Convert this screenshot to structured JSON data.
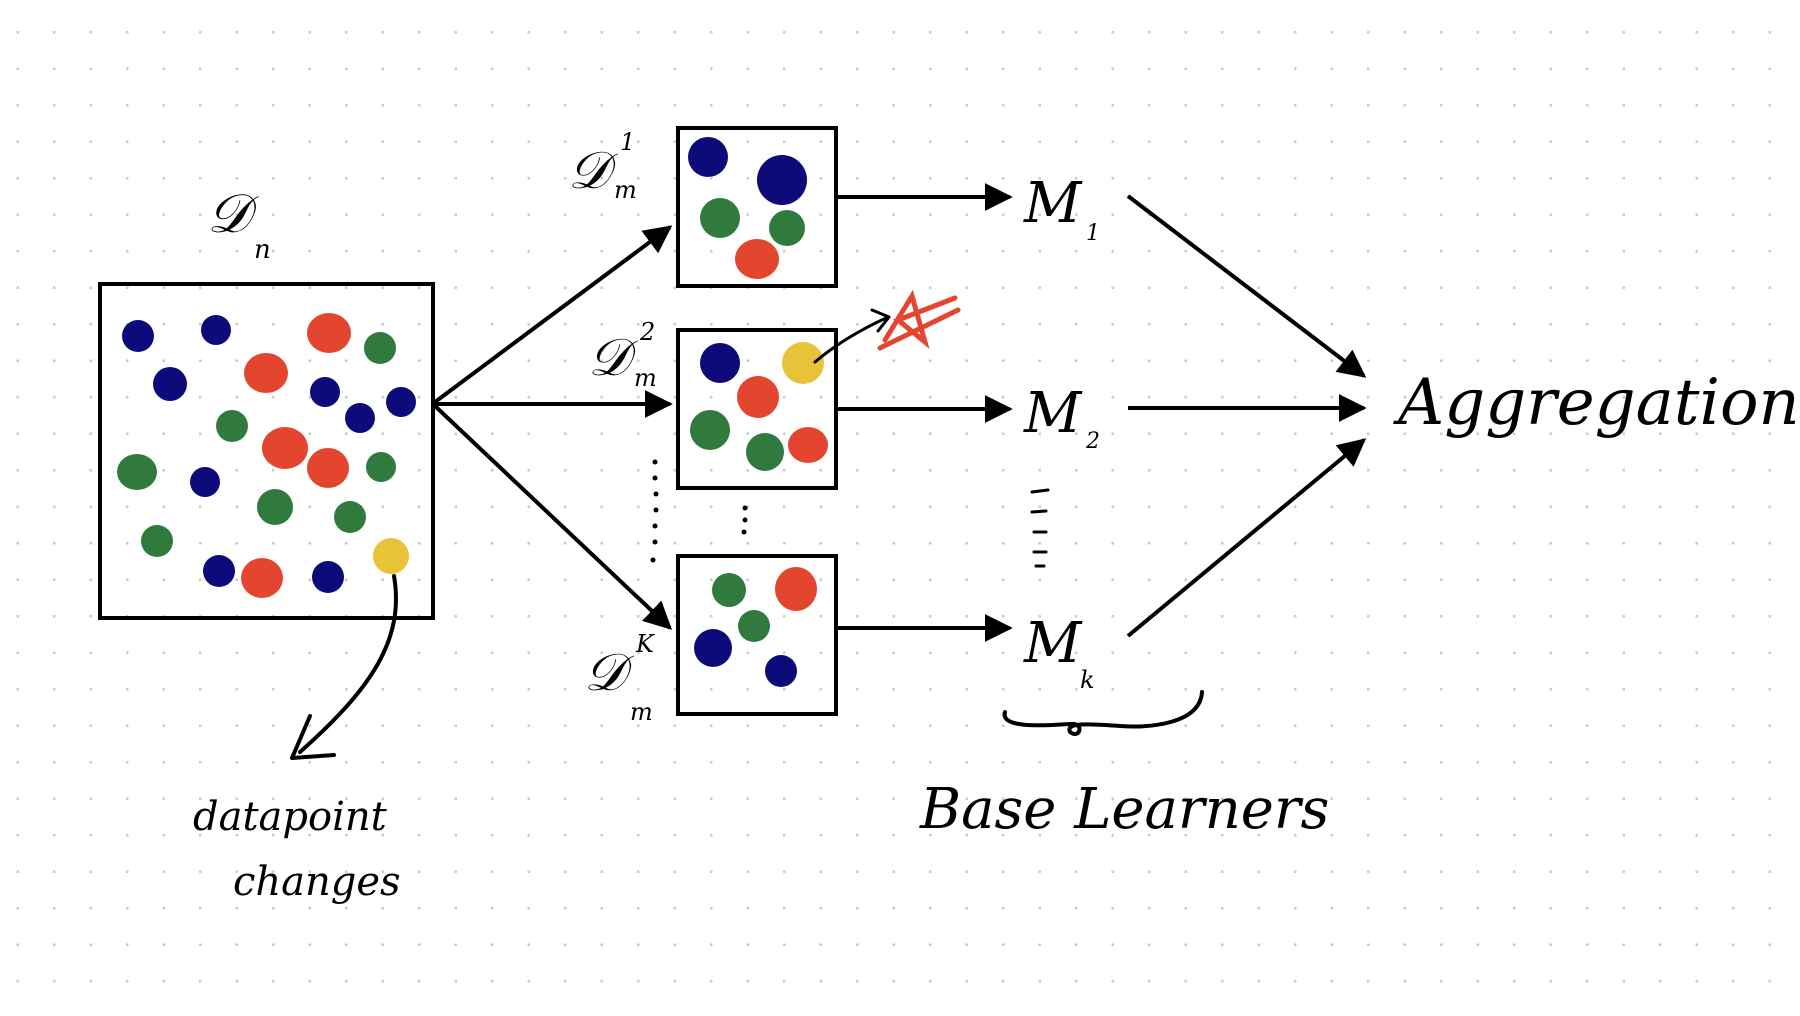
{
  "colors": {
    "navy": "#0d0a7a",
    "green": "#2f7a3c",
    "red": "#e4452f",
    "yellow": "#e8c33a",
    "ink": "#000000"
  },
  "full_dataset": {
    "label": "𝒟",
    "label_sub": "n",
    "annotation_line1": "datapoint",
    "annotation_line2": "changes"
  },
  "subsets": [
    {
      "label": "𝒟",
      "sub": "m",
      "sup": "1"
    },
    {
      "label": "𝒟",
      "sub": "m",
      "sup": "2"
    },
    {
      "label": "𝒟",
      "sub": "m",
      "sup": "K"
    }
  ],
  "models": [
    {
      "label": "M",
      "sub": "1"
    },
    {
      "label": "M",
      "sub": "2"
    },
    {
      "label": "M",
      "sub": "k"
    }
  ],
  "base_learners_label": "Base Learners",
  "aggregation_label": "Aggregation"
}
